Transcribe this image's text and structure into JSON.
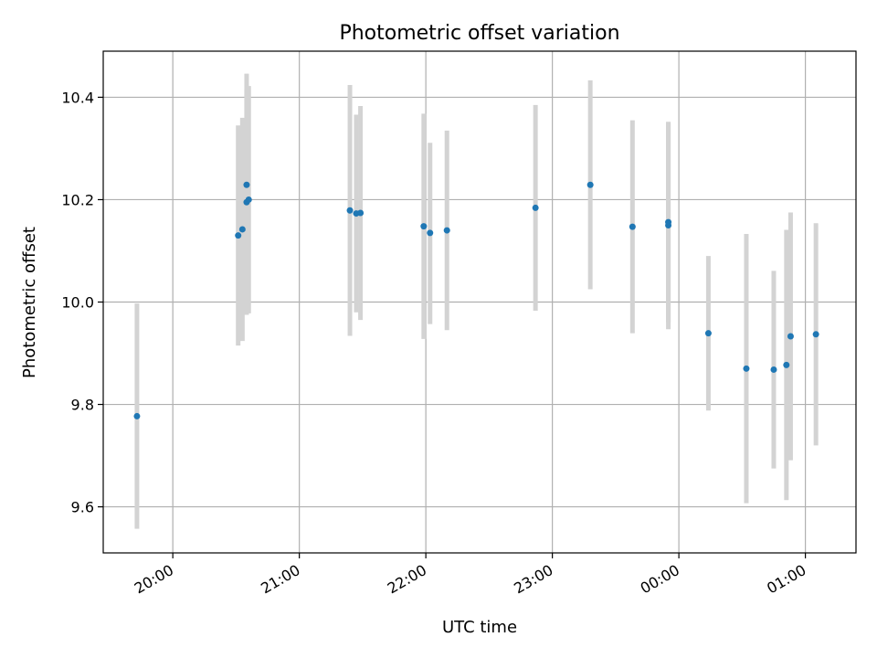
{
  "chart_data": {
    "type": "scatter",
    "title": "Photometric offset variation",
    "xlabel": "UTC time",
    "ylabel": "Photometric offset",
    "x_axis": {
      "type": "time",
      "ticks": [
        "20:00",
        "21:00",
        "22:00",
        "23:00",
        "00:00",
        "01:00"
      ],
      "xlim": [
        "19:27",
        "01:24"
      ]
    },
    "ylim": [
      9.51,
      10.49
    ],
    "y_ticks": [
      9.6,
      9.8,
      10.0,
      10.2,
      10.4
    ],
    "grid": true,
    "colors": {
      "points": "#1f77b4",
      "errorbars": "#d3d3d3"
    },
    "points": [
      {
        "t": "19:43",
        "y": 9.777,
        "lo": 9.557,
        "hi": 9.997
      },
      {
        "t": "20:31",
        "y": 10.13,
        "lo": 9.915,
        "hi": 10.345
      },
      {
        "t": "20:33",
        "y": 10.142,
        "lo": 9.924,
        "hi": 10.36
      },
      {
        "t": "20:35",
        "y": 10.229,
        "lo": 10.012,
        "hi": 10.446
      },
      {
        "t": "20:35",
        "y": 10.195,
        "lo": 9.975,
        "hi": 10.415
      },
      {
        "t": "20:36",
        "y": 10.2,
        "lo": 9.978,
        "hi": 10.422
      },
      {
        "t": "21:24",
        "y": 10.179,
        "lo": 9.934,
        "hi": 10.424
      },
      {
        "t": "21:27",
        "y": 10.173,
        "lo": 9.98,
        "hi": 10.366
      },
      {
        "t": "21:29",
        "y": 10.174,
        "lo": 9.965,
        "hi": 10.383
      },
      {
        "t": "21:59",
        "y": 10.148,
        "lo": 9.928,
        "hi": 10.368
      },
      {
        "t": "22:02",
        "y": 10.135,
        "lo": 9.957,
        "hi": 10.311
      },
      {
        "t": "22:10",
        "y": 10.14,
        "lo": 9.945,
        "hi": 10.335
      },
      {
        "t": "22:52",
        "y": 10.184,
        "lo": 9.983,
        "hi": 10.385
      },
      {
        "t": "23:18",
        "y": 10.229,
        "lo": 10.025,
        "hi": 10.433
      },
      {
        "t": "23:38",
        "y": 10.147,
        "lo": 9.939,
        "hi": 10.355
      },
      {
        "t": "23:55",
        "y": 10.15,
        "lo": 9.947,
        "hi": 10.35
      },
      {
        "t": "23:55",
        "y": 10.156,
        "lo": 9.96,
        "hi": 10.352
      },
      {
        "t": "00:14",
        "y": 9.939,
        "lo": 9.788,
        "hi": 10.09
      },
      {
        "t": "00:32",
        "y": 9.87,
        "lo": 9.607,
        "hi": 10.133
      },
      {
        "t": "00:45",
        "y": 9.868,
        "lo": 9.675,
        "hi": 10.061
      },
      {
        "t": "00:51",
        "y": 9.877,
        "lo": 9.613,
        "hi": 10.141
      },
      {
        "t": "00:53",
        "y": 9.933,
        "lo": 9.691,
        "hi": 10.175
      },
      {
        "t": "01:05",
        "y": 9.937,
        "lo": 9.72,
        "hi": 10.154
      }
    ]
  }
}
